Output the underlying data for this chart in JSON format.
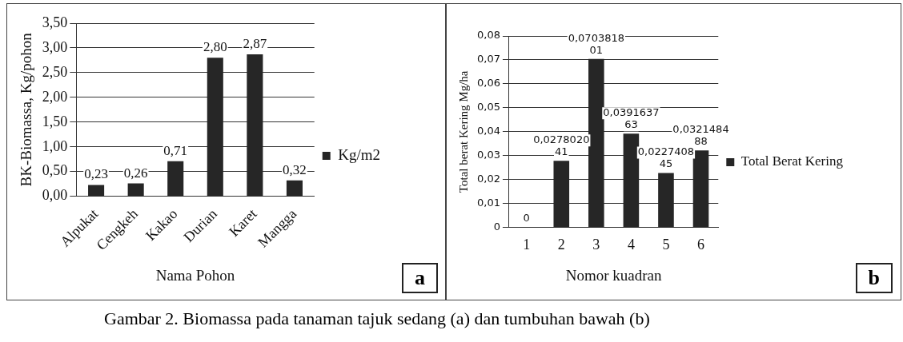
{
  "chart_data": [
    {
      "type": "bar",
      "xlabel": "Nama Pohon",
      "ylabel": "BK-Biomassa, Kg/pohon",
      "categories": [
        "Alpukat",
        "Cengkeh",
        "Kakao",
        "Durian",
        "Karet",
        "Mangga"
      ],
      "series": [
        {
          "name": "Kg/m2",
          "color": "#262626",
          "values": [
            0.23,
            0.26,
            0.71,
            2.8,
            2.87,
            0.32
          ],
          "value_labels": [
            "0,23",
            "0,26",
            "0,71",
            "2,80",
            "2,87",
            "0,32"
          ]
        }
      ],
      "ylim": [
        0,
        3.5
      ],
      "yticks": [
        {
          "value": 0,
          "label": "0,00"
        },
        {
          "value": 0.5,
          "label": "0,50"
        },
        {
          "value": 1,
          "label": "1,00"
        },
        {
          "value": 1.5,
          "label": "1,50"
        },
        {
          "value": 2,
          "label": "2,00"
        },
        {
          "value": 2.5,
          "label": "2,50"
        },
        {
          "value": 3,
          "label": "3,00"
        },
        {
          "value": 3.5,
          "label": "3,50"
        }
      ],
      "grid": "y",
      "legend": "right",
      "annotations": [
        "a",
        "Gambar 2.  Biomassa pada tanaman tajuk sedang (a) dan tumbuhan bawah (b)"
      ]
    },
    {
      "type": "bar",
      "xlabel": "Nomor kuadran",
      "ylabel": "Total berat Kering Mg/ha",
      "categories": [
        "1",
        "2",
        "3",
        "4",
        "5",
        "6"
      ],
      "series": [
        {
          "name": "Total Berat Kering",
          "color": "#262626",
          "values": [
            0,
            0.027802041,
            0.070381801,
            0.039163763,
            0.022740845,
            0.032148488
          ],
          "value_labels": [
            "0",
            "0,027802041",
            "0,070381801",
            "0,039163763",
            "0,022740845",
            "0,032148488"
          ]
        }
      ],
      "ylim": [
        0,
        0.08
      ],
      "yticks": [
        0,
        {
          "value": 0.01,
          "label": "0,01"
        },
        {
          "value": 0.02,
          "label": "0,02"
        },
        {
          "value": 0.03,
          "label": "0,03"
        },
        {
          "value": 0.04,
          "label": "0,04"
        },
        {
          "value": 0.05,
          "label": "0,05"
        },
        {
          "value": 0.06,
          "label": "0,06"
        },
        {
          "value": 0.07,
          "label": "0,07"
        },
        {
          "value": 0.08,
          "label": "0,08"
        }
      ],
      "grid": "y",
      "legend": "right",
      "annotations": [
        "b"
      ]
    }
  ]
}
